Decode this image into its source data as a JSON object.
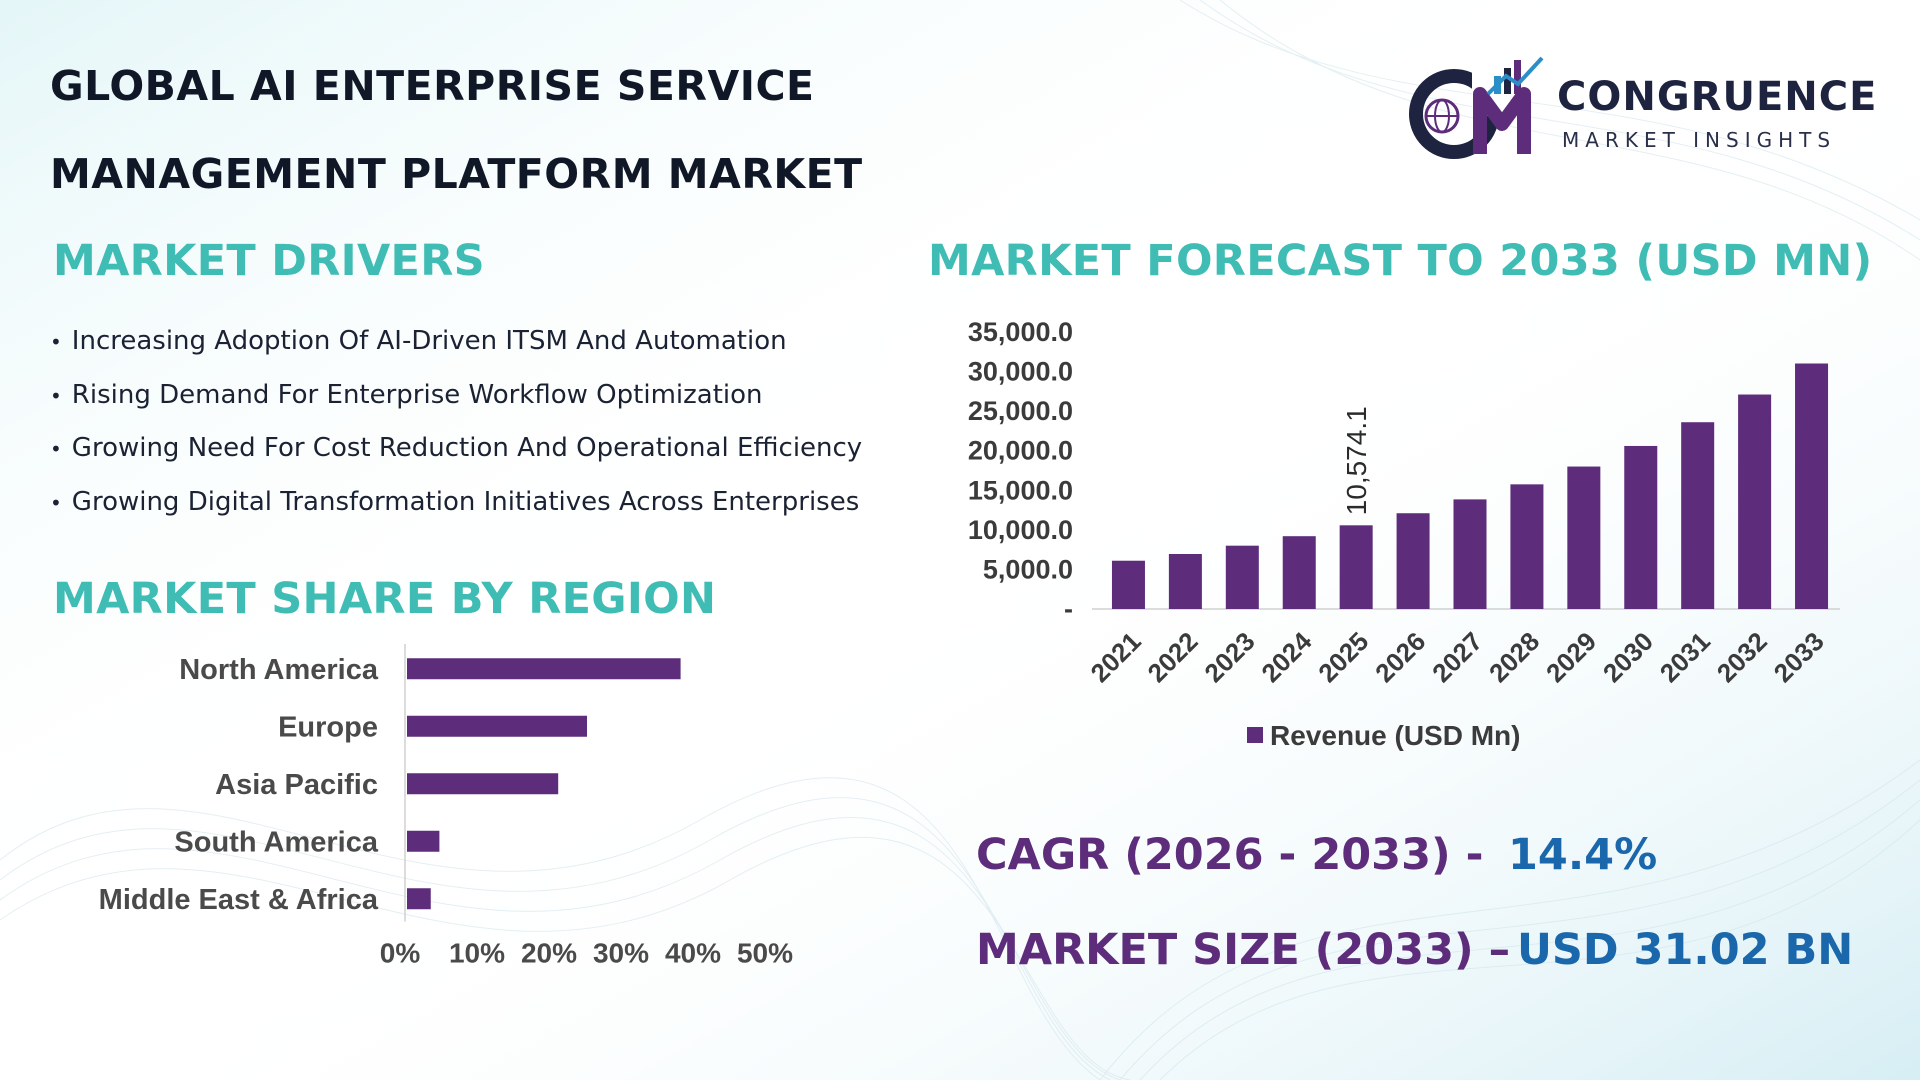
{
  "title": {
    "line1": "GLOBAL AI ENTERPRISE SERVICE",
    "line2": "MANAGEMENT PLATFORM MARKET"
  },
  "logo": {
    "name": "CONGRUENCE",
    "subtitle": "MARKET INSIGHTS",
    "icon": "cmi-globe-chart-logo"
  },
  "drivers": {
    "heading": "MARKET DRIVERS",
    "items": [
      "Increasing Adoption Of AI-Driven ITSM And Automation",
      "Rising Demand For Enterprise Workflow Optimization",
      "Growing Need For Cost Reduction And Operational Efficiency",
      "Growing Digital Transformation Initiatives Across Enterprises"
    ]
  },
  "region": {
    "heading": "MARKET SHARE BY REGION"
  },
  "forecast": {
    "heading": "MARKET FORECAST TO 2033 (USD MN)"
  },
  "metrics": {
    "cagr_label": "CAGR (2026 - 2033) -",
    "cagr_value": "14.4%",
    "size_label": "MARKET SIZE (2033) –",
    "size_value": "USD 31.02 BN"
  },
  "colors": {
    "bar": "#5d2d7c",
    "heading_teal": "#3fbcb4",
    "value_blue": "#1b67ab",
    "title_dark": "#101828"
  },
  "chart_data": [
    {
      "type": "bar",
      "orientation": "vertical",
      "categories": [
        "2021",
        "2022",
        "2023",
        "2024",
        "2025",
        "2026",
        "2027",
        "2028",
        "2029",
        "2030",
        "2031",
        "2032",
        "2033"
      ],
      "series": [
        {
          "name": "Revenue (USD Mn)",
          "values": [
            6100,
            6950,
            8000,
            9200,
            10574.1,
            12100,
            13850,
            15750,
            18000,
            20600,
            23600,
            27100,
            31020
          ]
        }
      ],
      "data_labels": [
        {
          "index": 4,
          "text": "10,574.1"
        }
      ],
      "y_ticks": [
        "-",
        "5,000.0",
        "10,000.0",
        "15,000.0",
        "20,000.0",
        "25,000.0",
        "30,000.0",
        "35,000.0"
      ],
      "ylim": [
        0,
        35000
      ],
      "legend": "bottom",
      "grid": false
    },
    {
      "type": "bar",
      "orientation": "horizontal",
      "categories": [
        "North America",
        "Europe",
        "Asia Pacific",
        "South America",
        "Middle East & Africa"
      ],
      "values": [
        38,
        25,
        21,
        4.5,
        3.3
      ],
      "x_ticks": [
        "0%",
        "10%",
        "20%",
        "30%",
        "40%",
        "50%"
      ],
      "xlim": [
        0,
        50
      ],
      "grid": false
    }
  ]
}
